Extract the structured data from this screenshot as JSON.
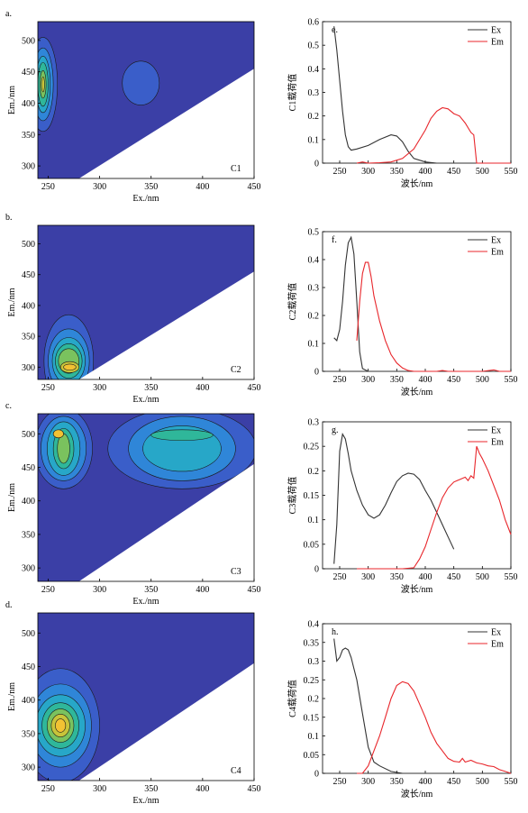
{
  "colors": {
    "contour_bg": "#3b3fa6",
    "contour_levels": [
      "#3b3fa6",
      "#3a5ec9",
      "#2f86d8",
      "#27a7c8",
      "#2fb79a",
      "#7ac25e",
      "#c8c43a",
      "#f2c233"
    ],
    "ex_line": "#333333",
    "em_line": "#e8262b",
    "white_mask": "#ffffff"
  },
  "chart_data": [
    {
      "type": "heatmap",
      "panel": "a.",
      "component": "C1",
      "xlabel": "Ex./nm",
      "ylabel": "Em./nm",
      "xlim": [
        240,
        450
      ],
      "ylim": [
        280,
        530
      ],
      "xticks": [
        250,
        300,
        350,
        400,
        450
      ],
      "yticks": [
        300,
        350,
        400,
        450,
        500
      ],
      "peaks": [
        {
          "ex": 245,
          "em": 430,
          "levels": [
            {
              "rx": 14,
              "ry": 75,
              "lvl": 1
            },
            {
              "rx": 10,
              "ry": 58,
              "lvl": 2
            },
            {
              "rx": 7,
              "ry": 45,
              "lvl": 3
            },
            {
              "rx": 5,
              "ry": 35,
              "lvl": 4
            },
            {
              "rx": 3,
              "ry": 22,
              "lvl": 5
            },
            {
              "rx": 1.5,
              "ry": 12,
              "lvl": 6
            }
          ]
        },
        {
          "ex": 340,
          "em": 432,
          "levels": [
            {
              "rx": 18,
              "ry": 35,
              "lvl": 1
            }
          ]
        }
      ],
      "mask_line": [
        [
          280,
          280
        ],
        [
          450,
          455
        ]
      ]
    },
    {
      "type": "heatmap",
      "panel": "b.",
      "component": "C2",
      "xlabel": "Ex./nm",
      "ylabel": "Em./nm",
      "xlim": [
        240,
        450
      ],
      "ylim": [
        280,
        530
      ],
      "xticks": [
        250,
        300,
        350,
        400,
        450
      ],
      "yticks": [
        300,
        350,
        400,
        450,
        500
      ],
      "peaks": [
        {
          "ex": 270,
          "em": 310,
          "levels": [
            {
              "rx": 24,
              "ry": 75,
              "lvl": 1
            },
            {
              "rx": 20,
              "ry": 52,
              "lvl": 2
            },
            {
              "rx": 16,
              "ry": 38,
              "lvl": 3
            },
            {
              "rx": 13,
              "ry": 28,
              "lvl": 4
            },
            {
              "rx": 10,
              "ry": 20,
              "lvl": 5
            }
          ]
        },
        {
          "ex": 271,
          "em": 300,
          "levels": [
            {
              "rx": 9,
              "ry": 9,
              "lvl": 6
            },
            {
              "rx": 6,
              "ry": 5,
              "lvl": 7
            }
          ]
        }
      ],
      "mask_line": [
        [
          280,
          280
        ],
        [
          450,
          455
        ]
      ]
    },
    {
      "type": "heatmap",
      "panel": "c.",
      "component": "C3",
      "xlabel": "Ex./nm",
      "ylabel": "Em./nm",
      "xlim": [
        240,
        450
      ],
      "ylim": [
        280,
        530
      ],
      "xticks": [
        250,
        300,
        350,
        400,
        450
      ],
      "yticks": [
        300,
        350,
        400,
        450,
        500
      ],
      "peaks": [
        {
          "ex": 265,
          "em": 478,
          "levels": [
            {
              "rx": 28,
              "ry": 60,
              "lvl": 1
            },
            {
              "rx": 22,
              "ry": 48,
              "lvl": 2
            },
            {
              "rx": 16,
              "ry": 40,
              "lvl": 3
            },
            {
              "rx": 10,
              "ry": 30,
              "lvl": 4
            },
            {
              "rx": 6,
              "ry": 22,
              "lvl": 5
            }
          ]
        },
        {
          "ex": 260,
          "em": 500,
          "levels": [
            {
              "rx": 5,
              "ry": 6,
              "lvl": 7
            }
          ]
        },
        {
          "ex": 380,
          "em": 478,
          "levels": [
            {
              "rx": 72,
              "ry": 60,
              "lvl": 1
            },
            {
              "rx": 52,
              "ry": 48,
              "lvl": 2
            },
            {
              "rx": 38,
              "ry": 34,
              "lvl": 3
            }
          ]
        },
        {
          "ex": 380,
          "em": 498,
          "levels": [
            {
              "rx": 30,
              "ry": 8,
              "lvl": 4
            }
          ]
        }
      ],
      "mask_line": [
        [
          280,
          280
        ],
        [
          450,
          455
        ]
      ]
    },
    {
      "type": "heatmap",
      "panel": "d.",
      "component": "C4",
      "xlabel": "Ex./nm",
      "ylabel": "Em./nm",
      "xlim": [
        240,
        450
      ],
      "ylim": [
        280,
        530
      ],
      "xticks": [
        250,
        300,
        350,
        400,
        450
      ],
      "yticks": [
        300,
        350,
        400,
        450,
        500
      ],
      "peaks": [
        {
          "ex": 262,
          "em": 362,
          "levels": [
            {
              "rx": 38,
              "ry": 85,
              "lvl": 1
            },
            {
              "rx": 30,
              "ry": 62,
              "lvl": 2
            },
            {
              "rx": 24,
              "ry": 46,
              "lvl": 3
            },
            {
              "rx": 18,
              "ry": 34,
              "lvl": 4
            },
            {
              "rx": 13,
              "ry": 25,
              "lvl": 5
            },
            {
              "rx": 9,
              "ry": 17,
              "lvl": 6
            },
            {
              "rx": 5,
              "ry": 10,
              "lvl": 7
            }
          ]
        }
      ],
      "mask_line": [
        [
          280,
          280
        ],
        [
          450,
          455
        ]
      ]
    },
    {
      "type": "line",
      "panel": "e.",
      "ylabel": "C1载荷值",
      "xlabel": "波长/nm",
      "xlim": [
        220,
        550
      ],
      "ylim": [
        0,
        0.6
      ],
      "xticks": [
        250,
        300,
        350,
        400,
        450,
        500,
        550
      ],
      "yticks": [
        0,
        0.1,
        0.2,
        0.3,
        0.4,
        0.5,
        0.6
      ],
      "legend_position": "top-right",
      "series": [
        {
          "name": "Ex",
          "x": [
            240,
            245,
            250,
            255,
            260,
            265,
            270,
            280,
            300,
            320,
            340,
            350,
            360,
            370,
            380,
            400,
            420,
            450
          ],
          "y": [
            0.58,
            0.48,
            0.35,
            0.22,
            0.12,
            0.07,
            0.055,
            0.06,
            0.075,
            0.1,
            0.12,
            0.115,
            0.09,
            0.05,
            0.02,
            0.005,
            0,
            0
          ]
        },
        {
          "name": "Em",
          "x": [
            280,
            290,
            300,
            320,
            340,
            360,
            380,
            400,
            410,
            420,
            430,
            440,
            450,
            460,
            470,
            480,
            485,
            490,
            500,
            550
          ],
          "y": [
            0,
            0.005,
            0,
            0.002,
            0.005,
            0.02,
            0.06,
            0.14,
            0.19,
            0.22,
            0.235,
            0.23,
            0.21,
            0.2,
            0.17,
            0.13,
            0.12,
            0,
            0,
            0
          ]
        }
      ]
    },
    {
      "type": "line",
      "panel": "f.",
      "ylabel": "C2载荷值",
      "xlabel": "波长/nm",
      "xlim": [
        220,
        550
      ],
      "ylim": [
        0,
        0.5
      ],
      "xticks": [
        250,
        300,
        350,
        400,
        450,
        500,
        550
      ],
      "yticks": [
        0,
        0.1,
        0.2,
        0.3,
        0.4,
        0.5
      ],
      "legend_position": "top-right",
      "series": [
        {
          "name": "Ex",
          "x": [
            240,
            245,
            250,
            255,
            260,
            265,
            270,
            275,
            280,
            285,
            290,
            300,
            350,
            400,
            450
          ],
          "y": [
            0.12,
            0.11,
            0.15,
            0.25,
            0.38,
            0.46,
            0.48,
            0.42,
            0.25,
            0.07,
            0.01,
            0,
            0,
            0,
            0
          ]
        },
        {
          "name": "Em",
          "x": [
            280,
            285,
            290,
            295,
            300,
            305,
            310,
            320,
            330,
            340,
            350,
            360,
            370,
            380,
            400,
            420,
            430,
            440,
            460,
            500,
            520,
            530,
            550
          ],
          "y": [
            0.11,
            0.25,
            0.35,
            0.39,
            0.39,
            0.34,
            0.27,
            0.18,
            0.11,
            0.06,
            0.03,
            0.012,
            0.003,
            0,
            0,
            0,
            0.003,
            0,
            0,
            0,
            0.005,
            0,
            0
          ]
        }
      ]
    },
    {
      "type": "line",
      "panel": "g.",
      "ylabel": "C3载荷值",
      "xlabel": "波长/nm",
      "xlim": [
        220,
        550
      ],
      "ylim": [
        0,
        0.3
      ],
      "xticks": [
        250,
        300,
        350,
        400,
        450,
        500,
        550
      ],
      "yticks": [
        0,
        0.05,
        0.1,
        0.15,
        0.2,
        0.25,
        0.3
      ],
      "legend_position": "top-right",
      "series": [
        {
          "name": "Ex",
          "x": [
            240,
            245,
            250,
            255,
            260,
            265,
            270,
            280,
            290,
            300,
            310,
            320,
            330,
            340,
            350,
            360,
            370,
            380,
            390,
            400,
            410,
            420,
            430,
            440,
            450
          ],
          "y": [
            0.01,
            0.09,
            0.24,
            0.275,
            0.265,
            0.235,
            0.2,
            0.16,
            0.13,
            0.11,
            0.103,
            0.11,
            0.13,
            0.155,
            0.178,
            0.19,
            0.195,
            0.193,
            0.182,
            0.16,
            0.14,
            0.115,
            0.09,
            0.065,
            0.04
          ]
        },
        {
          "name": "Em",
          "x": [
            280,
            300,
            320,
            340,
            360,
            380,
            390,
            400,
            410,
            420,
            430,
            440,
            450,
            460,
            470,
            475,
            480,
            485,
            490,
            495,
            500,
            510,
            520,
            530,
            540,
            550
          ],
          "y": [
            0,
            0,
            0,
            0,
            0,
            0.002,
            0.02,
            0.045,
            0.08,
            0.115,
            0.145,
            0.165,
            0.177,
            0.182,
            0.187,
            0.18,
            0.19,
            0.185,
            0.25,
            0.235,
            0.225,
            0.2,
            0.17,
            0.14,
            0.1,
            0.07
          ]
        }
      ]
    },
    {
      "type": "line",
      "panel": "h.",
      "ylabel": "C4载荷值",
      "xlabel": "波长/nm",
      "xlim": [
        220,
        550
      ],
      "ylim": [
        0,
        0.4
      ],
      "xticks": [
        250,
        300,
        350,
        400,
        450,
        500,
        550
      ],
      "yticks": [
        0,
        0.05,
        0.1,
        0.15,
        0.2,
        0.25,
        0.3,
        0.35,
        0.4
      ],
      "legend_position": "top-right",
      "series": [
        {
          "name": "Ex",
          "x": [
            240,
            245,
            250,
            255,
            260,
            265,
            270,
            275,
            280,
            290,
            300,
            310,
            320,
            340,
            360,
            400,
            450
          ],
          "y": [
            0.36,
            0.3,
            0.31,
            0.33,
            0.335,
            0.33,
            0.31,
            0.28,
            0.25,
            0.16,
            0.07,
            0.03,
            0.02,
            0.005,
            0,
            0,
            0
          ]
        },
        {
          "name": "Em",
          "x": [
            280,
            290,
            300,
            310,
            320,
            330,
            340,
            350,
            360,
            370,
            380,
            390,
            400,
            410,
            420,
            430,
            440,
            450,
            460,
            465,
            470,
            480,
            490,
            500,
            510,
            520,
            530,
            540,
            550
          ],
          "y": [
            0,
            0,
            0.02,
            0.06,
            0.1,
            0.15,
            0.2,
            0.235,
            0.245,
            0.24,
            0.22,
            0.185,
            0.15,
            0.11,
            0.08,
            0.06,
            0.04,
            0.032,
            0.03,
            0.04,
            0.03,
            0.035,
            0.028,
            0.025,
            0.02,
            0.018,
            0.01,
            0.005,
            0
          ]
        }
      ]
    }
  ]
}
